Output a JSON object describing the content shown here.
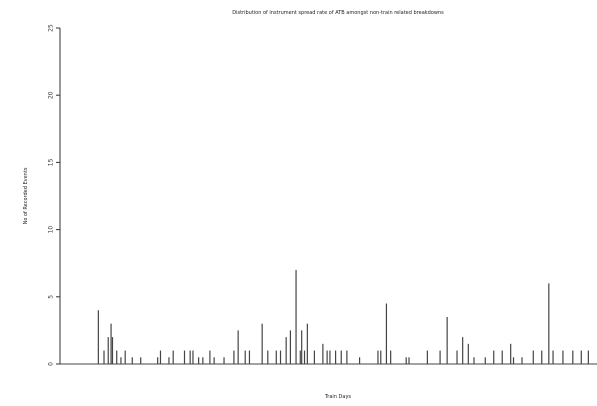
{
  "chart_data": {
    "type": "bar",
    "title": "Distribution of instrument spread rate of ATB amongst non-train related breakdowns",
    "xlabel": "Train Days",
    "ylabel": "No of Recorded Events",
    "ylim": [
      0,
      25
    ],
    "y_ticks": [
      0,
      5,
      10,
      15,
      20,
      25
    ],
    "x_range": [
      1,
      365
    ],
    "grid": false,
    "legend": "none",
    "colors": {
      "bar": "#444444",
      "axis": "#333333",
      "text": "#222222"
    },
    "x": [
      14,
      18,
      21,
      23,
      24,
      27,
      30,
      33,
      38,
      44,
      56,
      58,
      64,
      67,
      75,
      79,
      81,
      85,
      88,
      93,
      96,
      103,
      110,
      113,
      118,
      121,
      130,
      134,
      140,
      143,
      147,
      150,
      154,
      157,
      158,
      160,
      162,
      167,
      173,
      176,
      178,
      182,
      186,
      190,
      199,
      212,
      214,
      218,
      221,
      232,
      234,
      247,
      256,
      261,
      268,
      272,
      276,
      280,
      288,
      294,
      300,
      306,
      308,
      314,
      322,
      328,
      333,
      336,
      343,
      350,
      356,
      361
    ],
    "values": [
      4,
      1,
      2,
      3,
      2,
      1,
      0.5,
      1,
      0.5,
      0.5,
      0.5,
      1,
      0.5,
      1,
      1,
      1,
      1,
      0.5,
      0.5,
      1,
      0.5,
      0.5,
      1,
      2.5,
      1,
      1,
      3,
      1,
      1,
      1,
      2,
      2.5,
      7,
      1,
      2.5,
      1,
      3,
      1,
      1.5,
      1,
      1,
      1,
      1,
      1,
      0.5,
      1,
      1,
      4.5,
      1,
      0.5,
      0.5,
      1,
      1,
      3.5,
      1,
      2,
      1.5,
      0.5,
      0.5,
      1,
      1,
      1.5,
      0.5,
      0.5,
      1,
      1,
      6,
      1,
      1,
      1,
      1,
      1
    ]
  }
}
